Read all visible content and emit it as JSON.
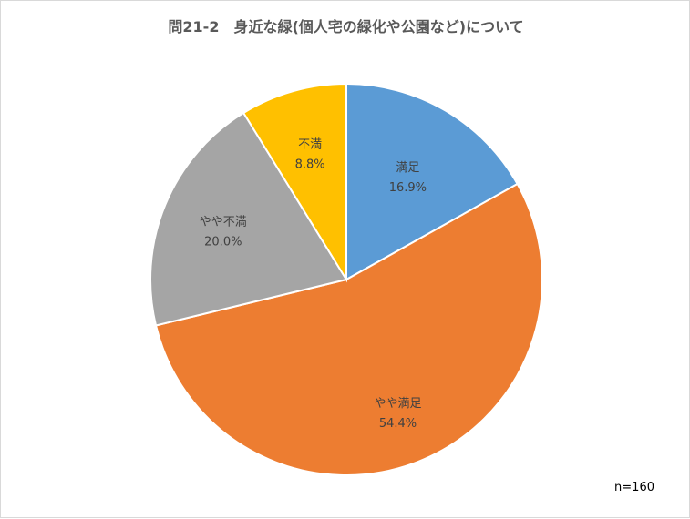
{
  "chart_data": {
    "type": "pie",
    "title": "問21-2　身近な緑(個人宅の緑化や公園など)について",
    "categories": [
      "満足",
      "やや満足",
      "やや不満",
      "不満"
    ],
    "values": [
      16.9,
      54.4,
      20.0,
      8.8
    ],
    "value_labels": [
      "16.9%",
      "54.4%",
      "20.0%",
      "8.8%"
    ],
    "colors": [
      "#5b9bd5",
      "#ed7d31",
      "#a5a5a5",
      "#ffc000"
    ],
    "start_angle": "12 o'clock",
    "direction": "clockwise",
    "legend": "none",
    "note": "n=160"
  }
}
